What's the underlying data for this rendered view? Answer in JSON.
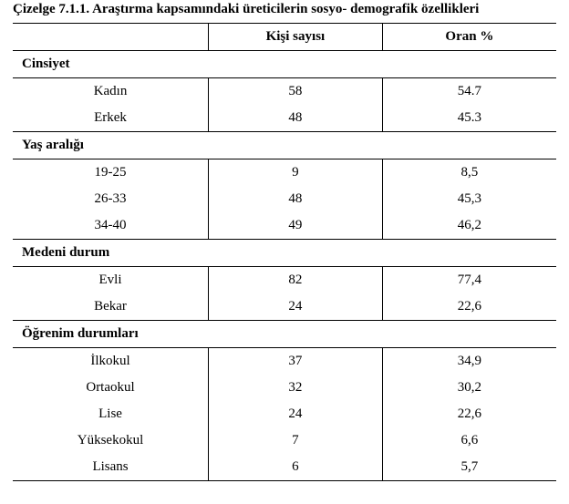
{
  "title": "Çizelge 7.1.1. Araştırma kapsamındaki üreticilerin sosyo- demografik özellikleri",
  "columns": {
    "c1": "",
    "c2": "Kişi sayısı",
    "c3": "Oran %"
  },
  "sections": [
    {
      "heading": "Cinsiyet",
      "rows": [
        {
          "label": "Kadın",
          "count": "58",
          "pct": "54.7"
        },
        {
          "label": "Erkek",
          "count": "48",
          "pct": "45.3"
        }
      ]
    },
    {
      "heading": "Yaş aralığı",
      "rows": [
        {
          "label": "19-25",
          "count": "9",
          "pct": "8,5"
        },
        {
          "label": "26-33",
          "count": "48",
          "pct": "45,3"
        },
        {
          "label": "34-40",
          "count": "49",
          "pct": "46,2"
        }
      ]
    },
    {
      "heading": "Medeni durum",
      "rows": [
        {
          "label": "Evli",
          "count": "82",
          "pct": "77,4"
        },
        {
          "label": "Bekar",
          "count": "24",
          "pct": "22,6"
        }
      ]
    },
    {
      "heading": "Öğrenim durumları",
      "rows": [
        {
          "label": "İlkokul",
          "count": "37",
          "pct": "34,9"
        },
        {
          "label": "Ortaokul",
          "count": "32",
          "pct": "30,2"
        },
        {
          "label": "Lise",
          "count": "24",
          "pct": "22,6"
        },
        {
          "label": "Yüksekokul",
          "count": "7",
          "pct": "6,6"
        },
        {
          "label": "Lisans",
          "count": "6",
          "pct": "5,7"
        }
      ]
    }
  ],
  "style": {
    "font_family": "Times New Roman",
    "title_fontsize": 15,
    "cell_fontsize": 15,
    "border_color": "#000000",
    "background_color": "#ffffff",
    "text_color": "#000000",
    "col_widths_pct": [
      36,
      32,
      32
    ]
  }
}
